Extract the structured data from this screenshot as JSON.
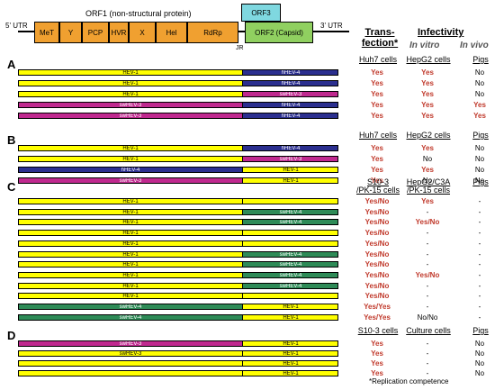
{
  "genome": {
    "utr5": "5' UTR",
    "utr3": "3' UTR",
    "orf1_title": "ORF1 (non-structural protein)",
    "orf3": "ORF3",
    "domains": [
      "MeT",
      "Y",
      "PCP",
      "HVR",
      "X",
      "Hel",
      "RdRp"
    ],
    "orf2": "ORF2 (Capsid)",
    "jr": "JR"
  },
  "colors": {
    "yellow": "#ffff00",
    "navy": "#2b2f8f",
    "magenta": "#c0298f",
    "green": "#2e8b57",
    "orange": "#f0a030",
    "orf2green": "#90d060",
    "orf3blue": "#7fd8e0"
  },
  "headers": {
    "transfection": "Trans-\nfection*",
    "infectivity": "Infectivity",
    "in_vitro": "In vitro",
    "in_vivo": "In vivo"
  },
  "panels": [
    {
      "letter": "A",
      "cols": [
        "Huh7 cells",
        "HepG2 cells",
        "Pigs"
      ],
      "rows": [
        {
          "left": "HEV-1",
          "right": "hHEV-4",
          "lc": "yellow",
          "rc": "navy",
          "vals": [
            "Yes",
            "Yes",
            "No"
          ]
        },
        {
          "left": "HEV-1",
          "right": "hHEV-4",
          "lc": "yellow",
          "rc": "navy",
          "vals": [
            "Yes",
            "Yes",
            "No"
          ]
        },
        {
          "left": "HEV-1",
          "right": "swHEV-3",
          "lc": "yellow",
          "rc": "magenta",
          "vals": [
            "Yes",
            "Yes",
            "No"
          ]
        },
        {
          "left": "swHEV-3",
          "right": "hHEV-4",
          "lc": "magenta",
          "rc": "navy",
          "vals": [
            "Yes",
            "Yes",
            "Yes"
          ]
        },
        {
          "left": "swHEV-3",
          "right": "hHEV-4",
          "lc": "magenta",
          "rc": "navy",
          "vals": [
            "Yes",
            "Yes",
            "Yes"
          ]
        }
      ]
    },
    {
      "letter": "B",
      "cols": [
        "Huh7 cells",
        "HepG2 cells",
        "Pigs"
      ],
      "rows": [
        {
          "left": "HEV-1",
          "right": "hHEV-4",
          "lc": "yellow",
          "rc": "navy",
          "vals": [
            "Yes",
            "Yes",
            "No"
          ]
        },
        {
          "left": "HEV-1",
          "right": "swHEV-3",
          "lc": "yellow",
          "rc": "magenta",
          "vals": [
            "Yes",
            "No",
            "No"
          ]
        },
        {
          "left": "hHEV-4",
          "right": "HEV-1",
          "lc": "navy",
          "rc": "yellow",
          "vals": [
            "Yes",
            "Yes",
            "No"
          ]
        },
        {
          "left": "swHEV-3",
          "right": "HEV-1",
          "lc": "magenta",
          "rc": "yellow",
          "vals": [
            "Yes",
            "No",
            "No"
          ]
        }
      ]
    },
    {
      "letter": "C",
      "cols": [
        "S10-3\n/PK-15 cells",
        "HepG2/C3A\n/PK-15 cells",
        "Pigs"
      ],
      "rows": [
        {
          "left": "HEV-1",
          "right": "",
          "lc": "yellow",
          "rc": "yellow",
          "vals": [
            "Yes/No",
            "Yes",
            "-"
          ]
        },
        {
          "left": "HEV-1",
          "right": "swHEV-4",
          "lc": "yellow",
          "rc": "green",
          "vals": [
            "Yes/No",
            "-",
            "-"
          ]
        },
        {
          "left": "HEV-1",
          "right": "swHEV-4",
          "lc": "yellow",
          "rc": "green",
          "vals": [
            "Yes/No",
            "Yes/No",
            "-"
          ]
        },
        {
          "left": "HEV-1",
          "right": "",
          "lc": "yellow",
          "rc": "yellow",
          "vals": [
            "Yes/No",
            "-",
            "-"
          ]
        },
        {
          "left": "HEV-1",
          "right": "",
          "lc": "yellow",
          "rc": "yellow",
          "vals": [
            "Yes/No",
            "-",
            "-"
          ]
        },
        {
          "left": "HEV-1",
          "right": "swHEV-4",
          "lc": "yellow",
          "rc": "green",
          "vals": [
            "Yes/No",
            "-",
            "-"
          ]
        },
        {
          "left": "HEV-1",
          "right": "swHEV-4",
          "lc": "yellow",
          "rc": "green",
          "vals": [
            "Yes/No",
            "-",
            "-"
          ]
        },
        {
          "left": "HEV-1",
          "right": "swHEV-4",
          "lc": "yellow",
          "rc": "green",
          "vals": [
            "Yes/No",
            "Yes/No",
            "-"
          ]
        },
        {
          "left": "HEV-1",
          "right": "swHEV-4",
          "lc": "yellow",
          "rc": "green",
          "vals": [
            "Yes/No",
            "-",
            "-"
          ]
        },
        {
          "left": "HEV-1",
          "right": "",
          "lc": "yellow",
          "rc": "yellow",
          "vals": [
            "Yes/No",
            "-",
            "-"
          ]
        },
        {
          "left": "swHEV-4",
          "right": "HEV-1",
          "lc": "green",
          "rc": "yellow",
          "vals": [
            "Yes/Yes",
            "-",
            "-"
          ]
        },
        {
          "left": "swHEV-4",
          "right": "HEV-1",
          "lc": "green",
          "rc": "yellow",
          "vals": [
            "Yes/Yes",
            "No/No",
            "-"
          ]
        }
      ]
    },
    {
      "letter": "D",
      "cols": [
        "S10-3 cells",
        "Culture cells",
        "Pigs"
      ],
      "rows": [
        {
          "left": "swHEV-3",
          "right": "HEV-1",
          "lc": "magenta",
          "rc": "yellow",
          "vals": [
            "Yes",
            "-",
            "No"
          ]
        },
        {
          "left": "swHEV-3",
          "right": "HEV-1",
          "lc": "yellow",
          "rc": "yellow",
          "vals": [
            "Yes",
            "-",
            "No"
          ]
        },
        {
          "left": "",
          "right": "HEV-1",
          "lc": "yellow",
          "rc": "yellow",
          "vals": [
            "Yes",
            "-",
            "No"
          ]
        },
        {
          "left": "",
          "right": "HEV-1",
          "lc": "yellow",
          "rc": "yellow",
          "vals": [
            "Yes",
            "-",
            "No"
          ]
        }
      ]
    }
  ],
  "footnote": "*Replication competence"
}
